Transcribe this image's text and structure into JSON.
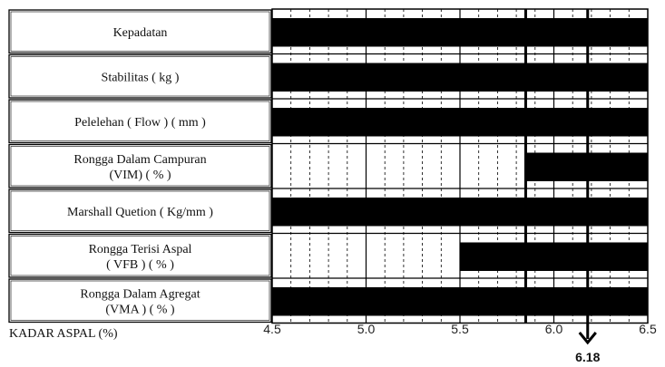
{
  "chart_data": {
    "type": "bar",
    "title": "",
    "xlabel": "KADAR ASPAL (%)",
    "xlim": [
      4.5,
      6.5
    ],
    "xticks": [
      4.5,
      5.0,
      5.5,
      6.0,
      6.5
    ],
    "tick_labels": [
      "4.5",
      "5.0",
      "5.5",
      "6.0",
      "6.5"
    ],
    "grid": true,
    "rows": [
      {
        "label": [
          "Kepadatan"
        ],
        "start": 4.5,
        "end": 6.5
      },
      {
        "label": [
          "Stabilitas ( kg )"
        ],
        "start": 4.5,
        "end": 6.5
      },
      {
        "label": [
          "Pelelehan ( Flow ) ( mm )"
        ],
        "start": 4.5,
        "end": 6.5
      },
      {
        "label": [
          "Rongga Dalam Campuran",
          "(VIM) ( % )"
        ],
        "start": 5.85,
        "end": 6.5
      },
      {
        "label": [
          "Marshall Quetion ( Kg/mm )"
        ],
        "start": 4.5,
        "end": 6.5
      },
      {
        "label": [
          "Rongga Terisi Aspal",
          "( VFB ) ( % )"
        ],
        "start": 5.5,
        "end": 6.5
      },
      {
        "label": [
          "Rongga Dalam Agregat",
          "(VMA ) ( % )"
        ],
        "start": 4.5,
        "end": 6.5
      }
    ],
    "reference_lines": [
      5.85,
      6.18
    ],
    "optimum_label": "6.18",
    "optimum_value": 6.18
  }
}
